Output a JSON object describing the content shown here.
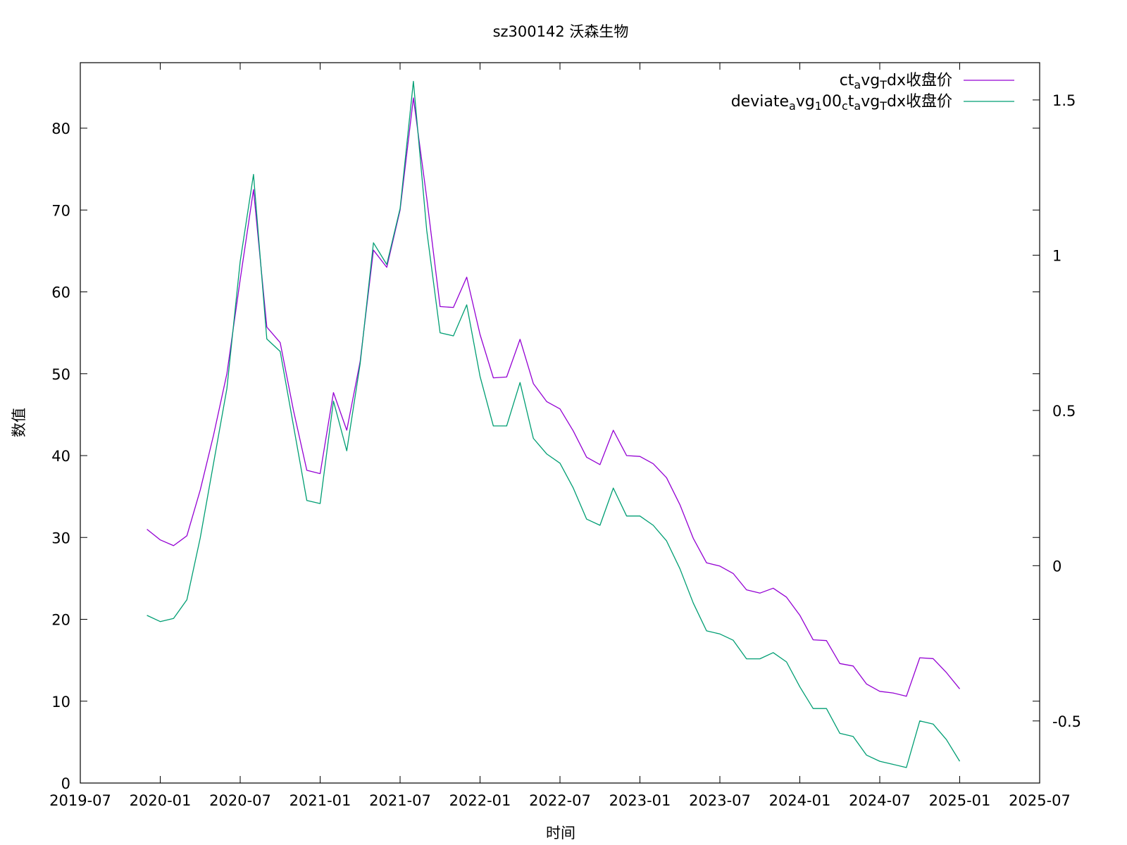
{
  "chart_data": {
    "type": "line",
    "title": "sz300142 沃森生物",
    "xlabel": "时间",
    "ylabel": "数值",
    "ylim": [
      0,
      88
    ],
    "y2lim": [
      -0.7,
      1.62
    ],
    "xlim": [
      "2019-07",
      "2025-07"
    ],
    "grid": false,
    "legend_position": "top-right",
    "x_ticks": [
      "2019-07",
      "2020-01",
      "2020-07",
      "2021-01",
      "2021-07",
      "2022-01",
      "2022-07",
      "2023-01",
      "2023-07",
      "2024-01",
      "2024-07",
      "2025-01",
      "2025-07"
    ],
    "y_ticks": [
      0,
      10,
      20,
      30,
      40,
      50,
      60,
      70,
      80
    ],
    "y2_ticks": [
      "-0.5",
      "0",
      "0.5",
      "1",
      "1.5"
    ],
    "x": [
      "2019-12",
      "2020-01",
      "2020-02",
      "2020-03",
      "2020-04",
      "2020-05",
      "2020-06",
      "2020-07",
      "2020-08",
      "2020-09",
      "2020-10",
      "2020-11",
      "2020-12",
      "2021-01",
      "2021-02",
      "2021-03",
      "2021-04",
      "2021-05",
      "2021-06",
      "2021-07",
      "2021-08",
      "2021-09",
      "2021-10",
      "2021-11",
      "2021-12",
      "2022-01",
      "2022-02",
      "2022-03",
      "2022-04",
      "2022-05",
      "2022-06",
      "2022-07",
      "2022-08",
      "2022-09",
      "2022-10",
      "2022-11",
      "2022-12",
      "2023-01",
      "2023-02",
      "2023-03",
      "2023-04",
      "2023-05",
      "2023-06",
      "2023-07",
      "2023-08",
      "2023-09",
      "2023-10",
      "2023-11",
      "2023-12",
      "2024-01",
      "2024-02",
      "2024-03",
      "2024-04",
      "2024-05",
      "2024-06",
      "2024-07",
      "2024-08",
      "2024-09",
      "2024-10",
      "2024-11",
      "2024-12",
      "2025-01"
    ],
    "series": [
      {
        "name": "ctavgTdx收盘价",
        "name_parts": [
          [
            "ct",
            ""
          ],
          [
            "a",
            "sub"
          ],
          [
            "vg",
            ""
          ],
          [
            "T",
            "sub"
          ],
          [
            "dx收盘价",
            ""
          ]
        ],
        "color": "#9400d3",
        "axis": "y1",
        "values": [
          31.0,
          29.7,
          29.0,
          30.2,
          35.8,
          42.5,
          50.0,
          61.5,
          72.5,
          55.7,
          53.8,
          45.5,
          38.2,
          37.8,
          47.7,
          43.1,
          51.5,
          65.1,
          63.0,
          70.0,
          83.7,
          71.5,
          58.2,
          58.1,
          61.8,
          54.8,
          49.5,
          49.6,
          54.2,
          48.8,
          46.6,
          45.7,
          43.0,
          39.8,
          38.9,
          43.1,
          40.0,
          39.9,
          39.0,
          37.3,
          34.0,
          29.9,
          26.9,
          26.5,
          25.6,
          23.6,
          23.2,
          23.8,
          22.7,
          20.5,
          17.5,
          17.4,
          14.6,
          14.3,
          12.1,
          11.2,
          11.0,
          10.6,
          15.3,
          15.2,
          13.5,
          11.5
        ]
      },
      {
        "name": "deviateavg100ctavgTdx收盘价",
        "name_parts": [
          [
            "deviate",
            ""
          ],
          [
            "a",
            "sub"
          ],
          [
            "vg",
            ""
          ],
          [
            "1",
            "sub"
          ],
          [
            "00",
            ""
          ],
          [
            "c",
            "sub"
          ],
          [
            "t",
            ""
          ],
          [
            "a",
            "sub"
          ],
          [
            "vg",
            ""
          ],
          [
            "T",
            "sub"
          ],
          [
            "dx收盘价",
            ""
          ]
        ],
        "color": "#009e73",
        "axis": "y2",
        "values": [
          -0.16,
          -0.18,
          -0.17,
          -0.11,
          0.09,
          0.33,
          0.57,
          0.98,
          1.26,
          0.73,
          0.69,
          0.45,
          0.21,
          0.2,
          0.53,
          0.37,
          0.65,
          1.04,
          0.97,
          1.15,
          1.56,
          1.08,
          0.75,
          0.74,
          0.84,
          0.61,
          0.45,
          0.45,
          0.59,
          0.41,
          0.36,
          0.33,
          0.25,
          0.15,
          0.13,
          0.25,
          0.16,
          0.16,
          0.13,
          0.08,
          -0.01,
          -0.12,
          -0.21,
          -0.22,
          -0.24,
          -0.3,
          -0.3,
          -0.28,
          -0.31,
          -0.39,
          -0.46,
          -0.46,
          -0.54,
          -0.55,
          -0.61,
          -0.63,
          -0.64,
          -0.65,
          -0.5,
          -0.51,
          -0.56,
          -0.63
        ]
      }
    ]
  }
}
